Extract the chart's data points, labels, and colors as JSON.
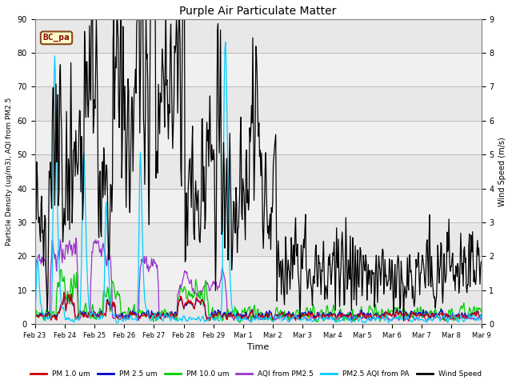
{
  "title": "Purple Air Particulate Matter",
  "xlabel": "Time",
  "ylabel_left": "Particle Density (ug/m3), AQI from PM2.5",
  "ylabel_right": "Wind Speed (m/s)",
  "annotation_text": "BC_pa",
  "annotation_color": "#8B0000",
  "annotation_bg": "#FFFFCC",
  "annotation_border": "#8B4513",
  "ylim_left": [
    0,
    90
  ],
  "ylim_right": [
    0.0,
    9.0
  ],
  "x_tick_labels": [
    "Feb 23",
    "Feb 24",
    "Feb 25",
    "Feb 26",
    "Feb 27",
    "Feb 28",
    "Feb 29",
    "Mar 1",
    "Mar 2",
    "Mar 3",
    "Mar 4",
    "Mar 5",
    "Mar 6",
    "Mar 7",
    "Mar 8",
    "Mar 9"
  ],
  "legend": [
    {
      "label": "PM 1.0 um",
      "color": "#CC0000"
    },
    {
      "label": "PM 2.5 um",
      "color": "#0000CC"
    },
    {
      "label": "PM 10.0 um",
      "color": "#00CC00"
    },
    {
      "label": "AQI from PM2.5",
      "color": "#9933CC"
    },
    {
      "label": "PM2.5 AQI from PA",
      "color": "#00CCFF"
    },
    {
      "label": "Wind Speed",
      "color": "#000000"
    }
  ],
  "colors": {
    "pm1": "#CC0000",
    "pm25": "#0000CC",
    "pm10": "#00CC00",
    "aqi": "#9933CC",
    "aqi_pa": "#00CCFF",
    "wind": "#000000"
  },
  "grid_color": "#BBBBBB",
  "bg_color": "#FFFFFF",
  "plot_bg": "#F0F0F0",
  "band_color": "#E0E0E0"
}
